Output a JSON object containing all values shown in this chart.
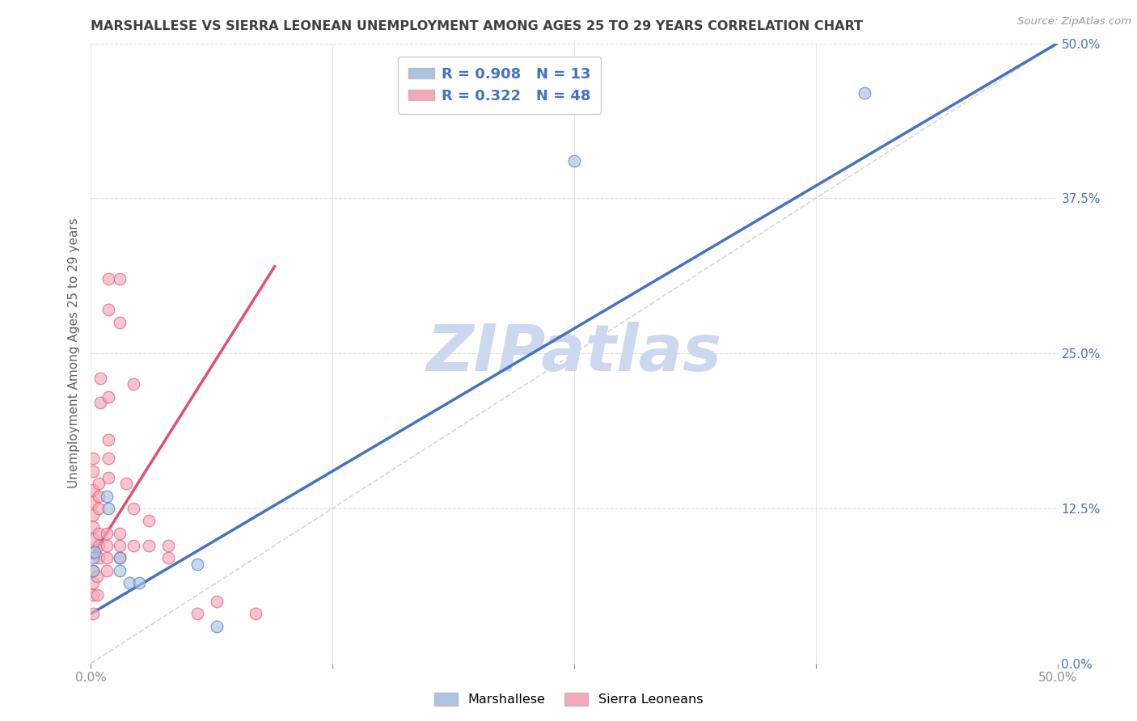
{
  "title": "MARSHALLESE VS SIERRA LEONEAN UNEMPLOYMENT AMONG AGES 25 TO 29 YEARS CORRELATION CHART",
  "source": "Source: ZipAtlas.com",
  "ylabel": "Unemployment Among Ages 25 to 29 years",
  "xlim": [
    0.0,
    0.5
  ],
  "ylim": [
    0.0,
    0.5
  ],
  "xtick_vals": [
    0.0,
    0.125,
    0.25,
    0.375,
    0.5
  ],
  "xtick_labels_show": [
    "0.0%",
    "",
    "",
    "",
    "50.0%"
  ],
  "ytick_vals": [
    0.0,
    0.125,
    0.25,
    0.375,
    0.5
  ],
  "right_tick_labels": [
    "0.0%",
    "12.5%",
    "25.0%",
    "37.5%",
    "50.0%"
  ],
  "marshallese_color": "#aac4e2",
  "sierra_leonean_color": "#f4a8b8",
  "marshallese_line_color": "#4472c4",
  "sierra_leonean_line_color": "#e05070",
  "diagonal_color": "#cccccc",
  "r_marshallese": 0.908,
  "n_marshallese": 13,
  "r_sierra": 0.322,
  "n_sierra": 48,
  "watermark": "ZIPatlas",
  "watermark_color": "#ccd8f0",
  "marshallese_points": [
    [
      0.001,
      0.085
    ],
    [
      0.001,
      0.075
    ],
    [
      0.002,
      0.09
    ],
    [
      0.008,
      0.135
    ],
    [
      0.009,
      0.125
    ],
    [
      0.015,
      0.085
    ],
    [
      0.015,
      0.075
    ],
    [
      0.02,
      0.065
    ],
    [
      0.025,
      0.065
    ],
    [
      0.25,
      0.405
    ],
    [
      0.4,
      0.46
    ],
    [
      0.055,
      0.08
    ],
    [
      0.065,
      0.03
    ]
  ],
  "sierra_leonean_points": [
    [
      0.001,
      0.04
    ],
    [
      0.001,
      0.055
    ],
    [
      0.001,
      0.065
    ],
    [
      0.001,
      0.075
    ],
    [
      0.001,
      0.09
    ],
    [
      0.001,
      0.1
    ],
    [
      0.001,
      0.11
    ],
    [
      0.001,
      0.12
    ],
    [
      0.001,
      0.13
    ],
    [
      0.001,
      0.14
    ],
    [
      0.001,
      0.155
    ],
    [
      0.001,
      0.165
    ],
    [
      0.003,
      0.055
    ],
    [
      0.003,
      0.07
    ],
    [
      0.004,
      0.085
    ],
    [
      0.004,
      0.095
    ],
    [
      0.004,
      0.105
    ],
    [
      0.004,
      0.125
    ],
    [
      0.004,
      0.135
    ],
    [
      0.004,
      0.145
    ],
    [
      0.005,
      0.21
    ],
    [
      0.005,
      0.23
    ],
    [
      0.008,
      0.075
    ],
    [
      0.008,
      0.085
    ],
    [
      0.008,
      0.095
    ],
    [
      0.008,
      0.105
    ],
    [
      0.009,
      0.15
    ],
    [
      0.009,
      0.165
    ],
    [
      0.009,
      0.18
    ],
    [
      0.009,
      0.215
    ],
    [
      0.009,
      0.285
    ],
    [
      0.009,
      0.31
    ],
    [
      0.015,
      0.085
    ],
    [
      0.015,
      0.095
    ],
    [
      0.015,
      0.105
    ],
    [
      0.015,
      0.275
    ],
    [
      0.015,
      0.31
    ],
    [
      0.018,
      0.145
    ],
    [
      0.022,
      0.095
    ],
    [
      0.022,
      0.125
    ],
    [
      0.022,
      0.225
    ],
    [
      0.03,
      0.095
    ],
    [
      0.03,
      0.115
    ],
    [
      0.04,
      0.085
    ],
    [
      0.04,
      0.095
    ],
    [
      0.055,
      0.04
    ],
    [
      0.065,
      0.05
    ],
    [
      0.085,
      0.04
    ]
  ],
  "blue_line_x": [
    0.0,
    0.5
  ],
  "blue_line_y": [
    0.04,
    0.5
  ],
  "pink_line_x": [
    0.0,
    0.095
  ],
  "pink_line_y": [
    0.085,
    0.32
  ],
  "dashed_line_x": [
    0.0,
    0.5
  ],
  "dashed_line_y": [
    0.0,
    0.5
  ],
  "background_color": "#ffffff",
  "grid_color": "#dedede",
  "title_color": "#404040",
  "axis_label_color": "#606060",
  "tick_label_color": "#909090",
  "right_tick_color": "#4472c4",
  "legend_text_color": "#4472c4",
  "marker_size": 110
}
